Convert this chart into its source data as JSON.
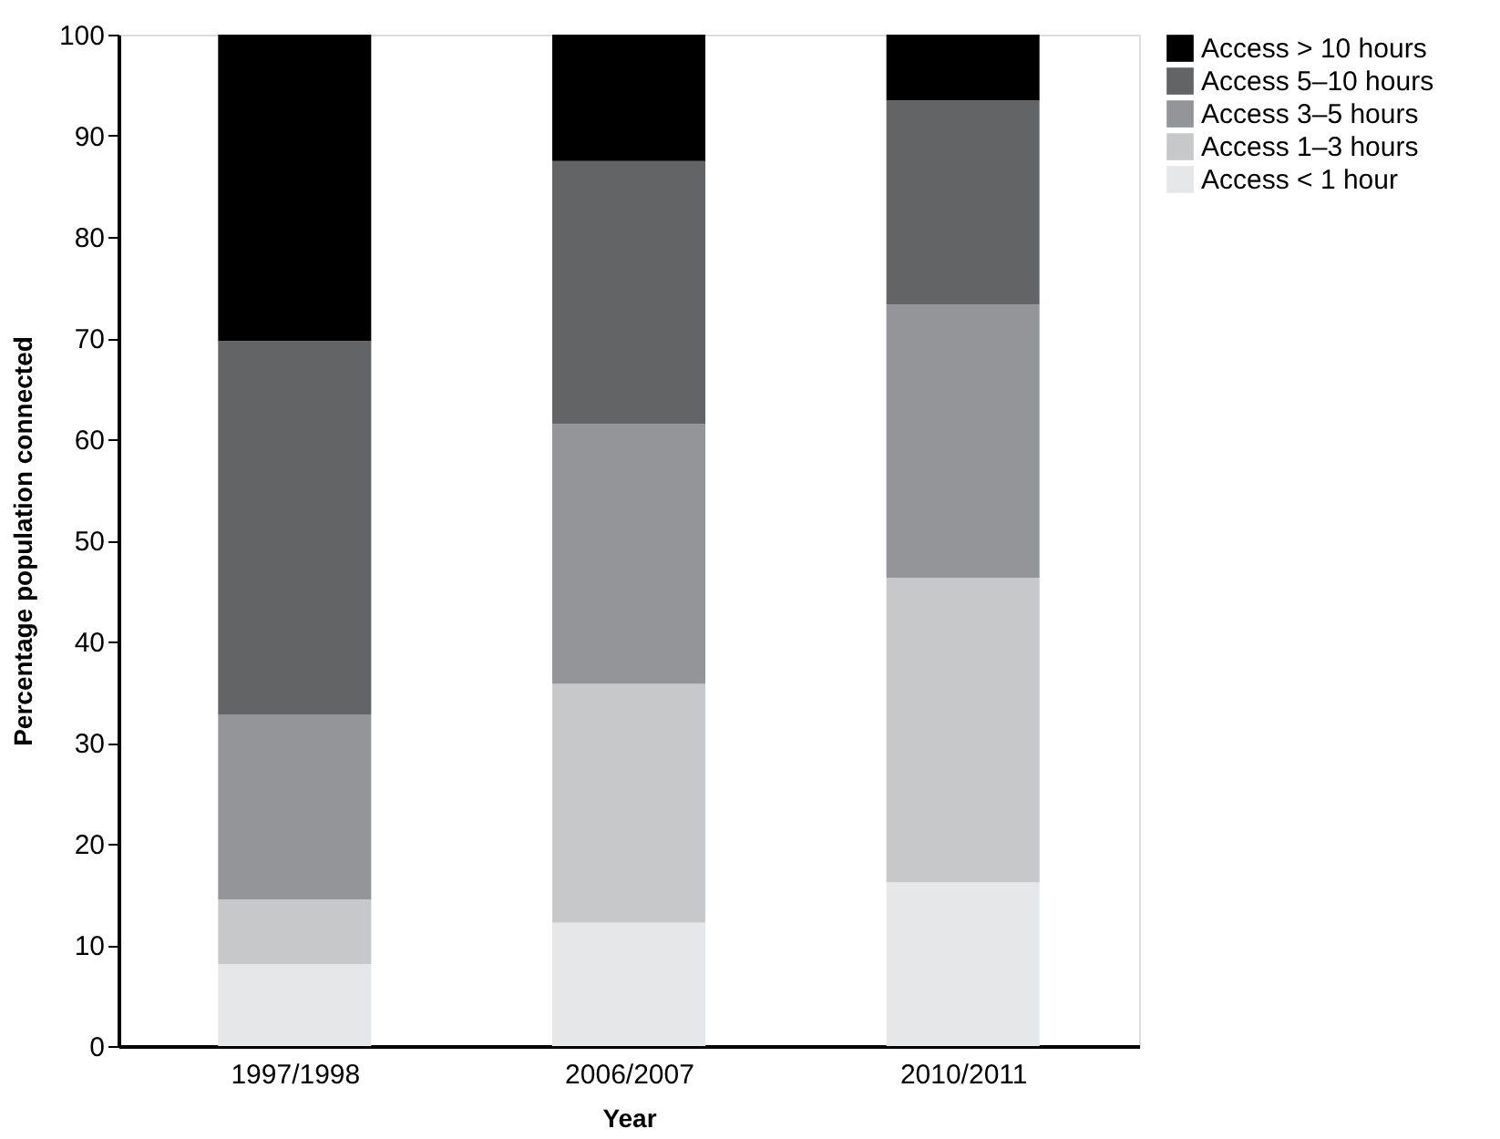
{
  "chart_data": {
    "type": "bar",
    "stacked": true,
    "xlabel": "Year",
    "ylabel": "Percentage population connected",
    "categories": [
      "1997/1998",
      "2006/2007",
      "2010/2011"
    ],
    "series": [
      {
        "name": "Access < 1 hour",
        "color": "#e6e7e8",
        "values": [
          8.1,
          12.2,
          16.2
        ]
      },
      {
        "name": "Access 1–3 hours",
        "color": "#c7c8ca",
        "values": [
          6.4,
          23.6,
          30.1
        ]
      },
      {
        "name": "Access 3–5 hours",
        "color": "#939598",
        "values": [
          18.3,
          25.7,
          27.0
        ]
      },
      {
        "name": "Access 5–10 hours",
        "color": "#636466",
        "values": [
          36.9,
          26.0,
          20.2
        ]
      },
      {
        "name": "Access > 10 hours",
        "color": "#000000",
        "values": [
          30.3,
          12.5,
          6.5
        ]
      }
    ],
    "ylim": [
      0,
      100
    ],
    "yticks": [
      0,
      10,
      20,
      30,
      40,
      50,
      60,
      70,
      80,
      90,
      100
    ],
    "grid": false,
    "legend": "top right"
  }
}
